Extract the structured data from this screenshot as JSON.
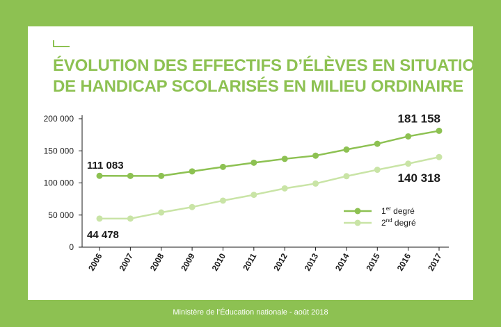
{
  "title": {
    "line1": "ÉVOLUTION DES EFFECTIFS D’ÉLÈVES EN SITUATION",
    "line2": "DE HANDICAP SCOLARISÉS EN MILIEU ORDINAIRE"
  },
  "footer": "Ministère de l’Éducation nationale - août 2018",
  "colors": {
    "background": "#8dc152",
    "series1": "#8dc152",
    "series2": "#c9e4a6",
    "text": "#1a1a1a"
  },
  "chart_data": {
    "type": "line",
    "x": [
      "2006",
      "2007",
      "2008",
      "2009",
      "2010",
      "2011",
      "2012",
      "2013",
      "2014",
      "2015",
      "2016",
      "2017"
    ],
    "series": [
      {
        "name": "1er degré",
        "legend_base": "1",
        "legend_sup": "er",
        "legend_rest": " degré",
        "values": [
          111083,
          111000,
          111000,
          118000,
          125000,
          131500,
          137500,
          142500,
          152000,
          161000,
          172500,
          181158
        ]
      },
      {
        "name": "2nd degré",
        "legend_base": "2",
        "legend_sup": "nd",
        "legend_rest": " degré",
        "values": [
          44478,
          44500,
          54000,
          62500,
          72500,
          81500,
          91500,
          99000,
          110500,
          120500,
          130000,
          140318
        ]
      }
    ],
    "y_ticks": [
      "0",
      "50 000",
      "100 000",
      "150 000",
      "200 000"
    ],
    "ylim": [
      0,
      200000
    ],
    "grid": false,
    "legend_position": "lower-right",
    "annotations": [
      {
        "label": "111 083",
        "series": 0,
        "point": 0
      },
      {
        "label": "181 158",
        "series": 0,
        "point": 11
      },
      {
        "label": "44 478",
        "series": 1,
        "point": 0
      },
      {
        "label": "140 318",
        "series": 1,
        "point": 11
      }
    ]
  }
}
